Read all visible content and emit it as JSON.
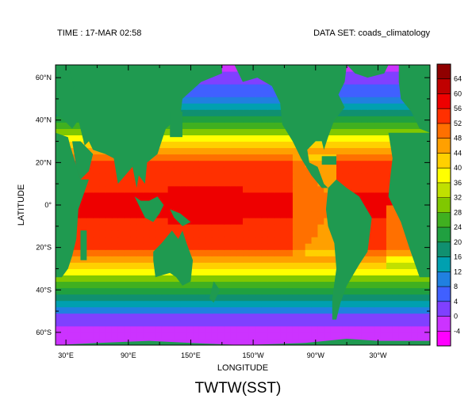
{
  "header": {
    "time": "TIME : 17-MAR 02:58",
    "dataset": "DATA SET: coads_climatology"
  },
  "chart_data": {
    "type": "heatmap",
    "title": "TWTW(SST)",
    "xlabel": "LONGITUDE",
    "ylabel": "LATITUDE",
    "x_range": [
      20,
      380
    ],
    "y_range": [
      -66,
      66
    ],
    "x_ticks": [
      "30°E",
      "90°E",
      "150°E",
      "150°W",
      "90°W",
      "30°W"
    ],
    "y_ticks": [
      "60°N",
      "40°N",
      "20°N",
      "0°",
      "20°S",
      "40°S",
      "60°S"
    ],
    "colorbar": {
      "levels": [
        -4,
        0,
        4,
        8,
        12,
        16,
        20,
        24,
        28,
        32,
        36,
        40,
        44,
        48,
        52,
        56,
        60,
        64
      ],
      "labels": [
        "-4",
        "0",
        "4",
        "8",
        "12",
        "16",
        "20",
        "24",
        "28",
        "32",
        "36",
        "40",
        "44",
        "48",
        "52",
        "56",
        "60",
        "64"
      ],
      "colors": [
        "#ff00ff",
        "#cc33ff",
        "#8040ff",
        "#4060ff",
        "#2080e0",
        "#00a0b0",
        "#109070",
        "#20a040",
        "#40b020",
        "#80c800",
        "#c0e000",
        "#ffff00",
        "#ffd000",
        "#ffa000",
        "#ff7000",
        "#ff3000",
        "#ee0000",
        "#c00000",
        "#900000"
      ]
    },
    "land_color": "#1f9a50",
    "field_description": "sea surface temperature, warm (~56-60) in tropics, cold (~-2-4) near 60°S and Arctic"
  }
}
